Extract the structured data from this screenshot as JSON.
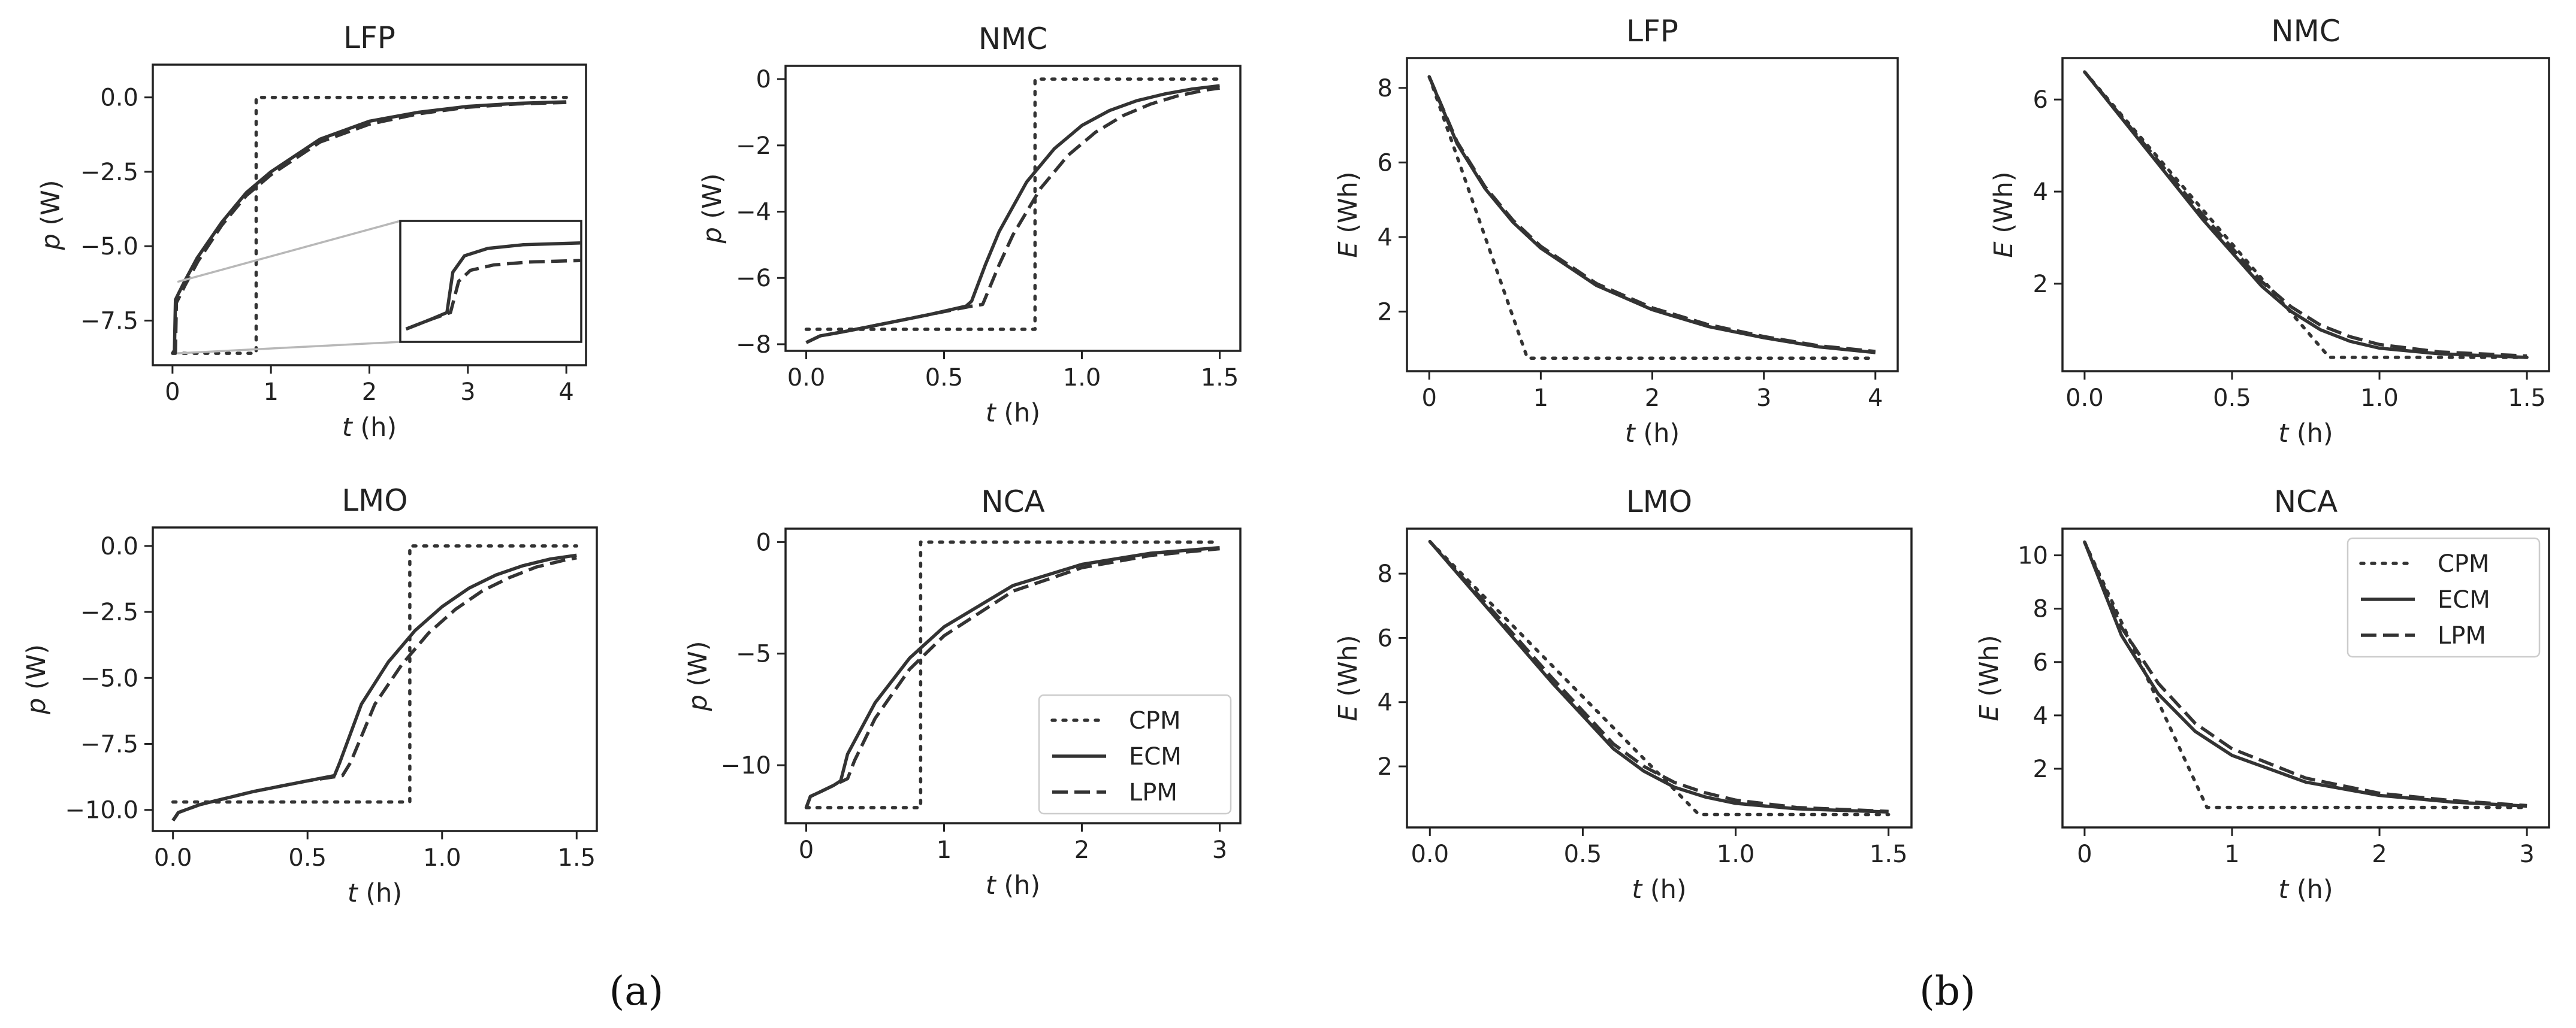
{
  "panel_labels": [
    "(a)",
    "(b)"
  ],
  "series_names": [
    "CPM",
    "ECM",
    "LPM"
  ],
  "chart_data": [
    {
      "type": "line",
      "group": "a",
      "title": "LFP",
      "xlabel": "t (h)",
      "ylabel": "p (W)",
      "xlim": [
        -0.2,
        4.2
      ],
      "ylim": [
        -9.0,
        1.1
      ],
      "xticks": [
        0,
        1,
        2,
        3,
        4
      ],
      "xtick_labels": [
        "0",
        "1",
        "2",
        "3",
        "4"
      ],
      "yticks": [
        -7.5,
        -5.0,
        -2.5,
        0.0
      ],
      "ytick_labels": [
        "−7.5",
        "−5.0",
        "−2.5",
        "0.0"
      ],
      "inset": true,
      "legend": "none",
      "series": [
        {
          "name": "CPM",
          "x": [
            0,
            0.85,
            0.85,
            4
          ],
          "y": [
            -8.6,
            -8.6,
            0,
            0
          ]
        },
        {
          "name": "ECM",
          "x": [
            0,
            0.02,
            0.03,
            0.06,
            0.12,
            0.25,
            0.5,
            0.75,
            1.0,
            1.5,
            2.0,
            2.5,
            3.0,
            3.5,
            4.0
          ],
          "y": [
            -8.6,
            -8.5,
            -6.8,
            -6.6,
            -6.2,
            -5.4,
            -4.2,
            -3.2,
            -2.5,
            -1.4,
            -0.8,
            -0.5,
            -0.3,
            -0.2,
            -0.15
          ]
        },
        {
          "name": "LPM",
          "x": [
            0,
            0.03,
            0.04,
            0.07,
            0.13,
            0.26,
            0.5,
            0.75,
            1.0,
            1.5,
            2.0,
            2.5,
            3.0,
            3.5,
            4.0
          ],
          "y": [
            -8.6,
            -8.55,
            -6.9,
            -6.7,
            -6.3,
            -5.5,
            -4.3,
            -3.3,
            -2.6,
            -1.5,
            -0.9,
            -0.55,
            -0.33,
            -0.22,
            -0.17
          ]
        }
      ]
    },
    {
      "type": "line",
      "group": "a",
      "title": "NMC",
      "xlabel": "t (h)",
      "ylabel": "p (W)",
      "xlim": [
        -0.075,
        1.575
      ],
      "ylim": [
        -8.2,
        0.4
      ],
      "xticks": [
        0,
        0.5,
        1.0,
        1.5
      ],
      "xtick_labels": [
        "0.0",
        "0.5",
        "1.0",
        "1.5"
      ],
      "yticks": [
        -8,
        -6,
        -4,
        -2,
        0
      ],
      "ytick_labels": [
        "−8",
        "−6",
        "−4",
        "−2",
        "0"
      ],
      "inset": false,
      "legend": "none",
      "series": [
        {
          "name": "CPM",
          "x": [
            0,
            0.83,
            0.83,
            1.5
          ],
          "y": [
            -7.55,
            -7.55,
            0,
            0
          ]
        },
        {
          "name": "ECM",
          "x": [
            0,
            0.05,
            0.15,
            0.3,
            0.45,
            0.58,
            0.6,
            0.65,
            0.7,
            0.8,
            0.9,
            1.0,
            1.1,
            1.2,
            1.3,
            1.4,
            1.5
          ],
          "y": [
            -7.95,
            -7.75,
            -7.6,
            -7.35,
            -7.1,
            -6.85,
            -6.7,
            -5.6,
            -4.6,
            -3.1,
            -2.1,
            -1.4,
            -0.95,
            -0.65,
            -0.45,
            -0.3,
            -0.2
          ]
        },
        {
          "name": "LPM",
          "x": [
            0,
            0.05,
            0.15,
            0.3,
            0.45,
            0.6,
            0.64,
            0.7,
            0.75,
            0.85,
            0.95,
            1.05,
            1.15,
            1.25,
            1.35,
            1.45,
            1.5
          ],
          "y": [
            -7.95,
            -7.75,
            -7.6,
            -7.35,
            -7.1,
            -6.85,
            -6.8,
            -5.6,
            -4.7,
            -3.3,
            -2.3,
            -1.6,
            -1.1,
            -0.75,
            -0.5,
            -0.33,
            -0.27
          ]
        }
      ]
    },
    {
      "type": "line",
      "group": "a",
      "title": "LMO",
      "xlabel": "t (h)",
      "ylabel": "p (W)",
      "xlim": [
        -0.075,
        1.575
      ],
      "ylim": [
        -10.8,
        0.7
      ],
      "xticks": [
        0,
        0.5,
        1.0,
        1.5
      ],
      "xtick_labels": [
        "0.0",
        "0.5",
        "1.0",
        "1.5"
      ],
      "yticks": [
        -10,
        -7.5,
        -5.0,
        -2.5,
        0.0
      ],
      "ytick_labels": [
        "−10.0",
        "−7.5",
        "−5.0",
        "−2.5",
        "0.0"
      ],
      "inset": false,
      "legend": "none",
      "series": [
        {
          "name": "CPM",
          "x": [
            0,
            0.88,
            0.88,
            1.5
          ],
          "y": [
            -9.7,
            -9.7,
            0,
            0
          ]
        },
        {
          "name": "ECM",
          "x": [
            0,
            0.02,
            0.1,
            0.3,
            0.5,
            0.6,
            0.62,
            0.7,
            0.8,
            0.9,
            1.0,
            1.1,
            1.2,
            1.3,
            1.4,
            1.5
          ],
          "y": [
            -10.4,
            -10.1,
            -9.8,
            -9.3,
            -8.9,
            -8.7,
            -8.2,
            -6.0,
            -4.4,
            -3.2,
            -2.3,
            -1.6,
            -1.1,
            -0.75,
            -0.5,
            -0.35
          ]
        },
        {
          "name": "LPM",
          "x": [
            0,
            0.02,
            0.1,
            0.3,
            0.5,
            0.63,
            0.66,
            0.75,
            0.85,
            0.95,
            1.05,
            1.15,
            1.25,
            1.35,
            1.45,
            1.5
          ],
          "y": [
            -10.4,
            -10.1,
            -9.8,
            -9.3,
            -8.9,
            -8.7,
            -8.2,
            -6.0,
            -4.5,
            -3.3,
            -2.4,
            -1.7,
            -1.2,
            -0.8,
            -0.55,
            -0.45
          ]
        }
      ]
    },
    {
      "type": "line",
      "group": "a",
      "title": "NCA",
      "xlabel": "t (h)",
      "ylabel": "p (W)",
      "xlim": [
        -0.15,
        3.15
      ],
      "ylim": [
        -12.6,
        0.6
      ],
      "xticks": [
        0,
        1,
        2,
        3
      ],
      "xtick_labels": [
        "0",
        "1",
        "2",
        "3"
      ],
      "yticks": [
        -10,
        -5,
        0
      ],
      "ytick_labels": [
        "−10",
        "−5",
        "0"
      ],
      "inset": false,
      "legend": "bottom-right",
      "series": [
        {
          "name": "CPM",
          "x": [
            0,
            0.83,
            0.83,
            3
          ],
          "y": [
            -11.9,
            -11.9,
            0,
            0
          ]
        },
        {
          "name": "ECM",
          "x": [
            0,
            0.03,
            0.1,
            0.2,
            0.25,
            0.3,
            0.5,
            0.75,
            1.0,
            1.5,
            2.0,
            2.5,
            3.0
          ],
          "y": [
            -11.9,
            -11.4,
            -11.2,
            -10.9,
            -10.7,
            -9.5,
            -7.2,
            -5.2,
            -3.8,
            -1.95,
            -1.0,
            -0.5,
            -0.25
          ]
        },
        {
          "name": "LPM",
          "x": [
            0,
            0.03,
            0.1,
            0.2,
            0.3,
            0.35,
            0.5,
            0.75,
            1.0,
            1.5,
            2.0,
            2.5,
            3.0
          ],
          "y": [
            -11.9,
            -11.4,
            -11.2,
            -10.9,
            -10.6,
            -9.8,
            -7.9,
            -5.7,
            -4.2,
            -2.2,
            -1.15,
            -0.6,
            -0.3
          ]
        }
      ]
    },
    {
      "type": "line",
      "group": "b",
      "title": "LFP",
      "xlabel": "t (h)",
      "ylabel": "E (Wh)",
      "xlim": [
        -0.2,
        4.2
      ],
      "ylim": [
        0.4,
        8.8
      ],
      "xticks": [
        0,
        1,
        2,
        3,
        4
      ],
      "xtick_labels": [
        "0",
        "1",
        "2",
        "3",
        "4"
      ],
      "yticks": [
        2,
        4,
        6,
        8
      ],
      "ytick_labels": [
        "2",
        "4",
        "6",
        "8"
      ],
      "inset": false,
      "legend": "none",
      "series": [
        {
          "name": "CPM",
          "x": [
            0,
            0.88,
            4
          ],
          "y": [
            8.3,
            0.75,
            0.75
          ]
        },
        {
          "name": "ECM",
          "x": [
            0,
            0.25,
            0.5,
            0.75,
            1.0,
            1.5,
            2.0,
            2.5,
            3.0,
            3.5,
            4.0
          ],
          "y": [
            8.3,
            6.5,
            5.3,
            4.4,
            3.7,
            2.7,
            2.05,
            1.6,
            1.3,
            1.05,
            0.9
          ]
        },
        {
          "name": "LPM",
          "x": [
            0,
            0.25,
            0.5,
            0.75,
            1.0,
            1.5,
            2.0,
            2.5,
            3.0,
            3.5,
            4.0
          ],
          "y": [
            8.3,
            6.55,
            5.35,
            4.45,
            3.75,
            2.75,
            2.1,
            1.65,
            1.33,
            1.08,
            0.93
          ]
        }
      ]
    },
    {
      "type": "line",
      "group": "b",
      "title": "NMC",
      "xlabel": "t (h)",
      "ylabel": "E (Wh)",
      "xlim": [
        -0.075,
        1.575
      ],
      "ylim": [
        0.1,
        6.9
      ],
      "xticks": [
        0,
        0.5,
        1.0,
        1.5
      ],
      "xtick_labels": [
        "0.0",
        "0.5",
        "1.0",
        "1.5"
      ],
      "yticks": [
        2,
        4,
        6
      ],
      "ytick_labels": [
        "2",
        "4",
        "6"
      ],
      "inset": false,
      "legend": "none",
      "series": [
        {
          "name": "CPM",
          "x": [
            0,
            0.83,
            1.5
          ],
          "y": [
            6.6,
            0.4,
            0.4
          ]
        },
        {
          "name": "ECM",
          "x": [
            0,
            0.2,
            0.4,
            0.6,
            0.7,
            0.8,
            0.9,
            1.0,
            1.2,
            1.5
          ],
          "y": [
            6.6,
            5.0,
            3.4,
            1.95,
            1.4,
            1.0,
            0.75,
            0.6,
            0.48,
            0.4
          ]
        },
        {
          "name": "LPM",
          "x": [
            0,
            0.2,
            0.4,
            0.6,
            0.7,
            0.8,
            0.9,
            1.0,
            1.2,
            1.5
          ],
          "y": [
            6.6,
            5.05,
            3.5,
            2.05,
            1.5,
            1.1,
            0.85,
            0.68,
            0.52,
            0.43
          ]
        }
      ]
    },
    {
      "type": "line",
      "group": "b",
      "title": "LMO",
      "xlabel": "t (h)",
      "ylabel": "E (Wh)",
      "xlim": [
        -0.075,
        1.575
      ],
      "ylim": [
        0.1,
        9.4
      ],
      "xticks": [
        0,
        0.5,
        1.0,
        1.5
      ],
      "xtick_labels": [
        "0.0",
        "0.5",
        "1.0",
        "1.5"
      ],
      "yticks": [
        2,
        4,
        6,
        8
      ],
      "ytick_labels": [
        "2",
        "4",
        "6",
        "8"
      ],
      "inset": false,
      "legend": "none",
      "series": [
        {
          "name": "CPM",
          "x": [
            0,
            0.88,
            1.5
          ],
          "y": [
            9.0,
            0.5,
            0.5
          ]
        },
        {
          "name": "ECM",
          "x": [
            0,
            0.2,
            0.4,
            0.6,
            0.7,
            0.8,
            0.9,
            1.0,
            1.2,
            1.5
          ],
          "y": [
            9.0,
            6.8,
            4.6,
            2.55,
            1.85,
            1.35,
            1.05,
            0.85,
            0.68,
            0.58
          ]
        },
        {
          "name": "LPM",
          "x": [
            0,
            0.2,
            0.4,
            0.6,
            0.7,
            0.8,
            0.9,
            1.0,
            1.2,
            1.5
          ],
          "y": [
            9.0,
            6.9,
            4.75,
            2.7,
            2.0,
            1.5,
            1.18,
            0.95,
            0.72,
            0.6
          ]
        }
      ]
    },
    {
      "type": "line",
      "group": "b",
      "title": "NCA",
      "xlabel": "t (h)",
      "ylabel": "E (Wh)",
      "xlim": [
        -0.15,
        3.15
      ],
      "ylim": [
        -0.2,
        11.0
      ],
      "xticks": [
        0,
        1,
        2,
        3
      ],
      "xtick_labels": [
        "0",
        "1",
        "2",
        "3"
      ],
      "yticks": [
        2,
        4,
        6,
        8,
        10
      ],
      "ytick_labels": [
        "2",
        "4",
        "6",
        "8",
        "10"
      ],
      "inset": false,
      "legend": "top-right",
      "series": [
        {
          "name": "CPM",
          "x": [
            0,
            0.83,
            3
          ],
          "y": [
            10.5,
            0.55,
            0.55
          ]
        },
        {
          "name": "ECM",
          "x": [
            0,
            0.25,
            0.5,
            0.75,
            1.0,
            1.5,
            2.0,
            2.5,
            3.0
          ],
          "y": [
            10.5,
            7.0,
            4.8,
            3.4,
            2.5,
            1.5,
            1.0,
            0.75,
            0.6
          ]
        },
        {
          "name": "LPM",
          "x": [
            0,
            0.25,
            0.5,
            0.75,
            1.0,
            1.5,
            2.0,
            2.5,
            3.0
          ],
          "y": [
            10.5,
            7.3,
            5.2,
            3.7,
            2.75,
            1.65,
            1.08,
            0.8,
            0.62
          ]
        }
      ]
    }
  ]
}
